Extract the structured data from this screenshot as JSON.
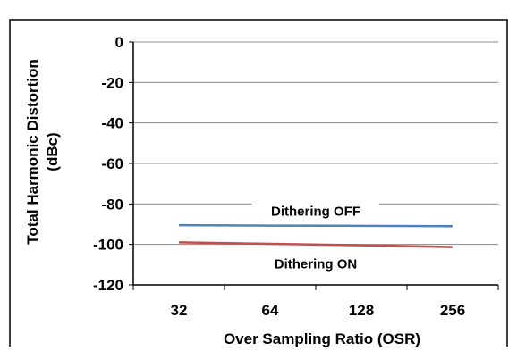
{
  "chart_data": {
    "type": "line",
    "categories": [
      "32",
      "64",
      "128",
      "256"
    ],
    "series": [
      {
        "name": "Dithering OFF",
        "values": [
          -90.5,
          -90.7,
          -90.8,
          -91
        ],
        "color": "#4f81bd"
      },
      {
        "name": "Dithering ON",
        "values": [
          -99,
          -99.7,
          -100.4,
          -101.3
        ],
        "color": "#c0504d"
      }
    ],
    "ylabel_line1": "Total Harmonic Distortion",
    "ylabel_line2": "(dBc)",
    "xlabel": "Over Sampling Ratio (OSR)",
    "ylim": [
      -120,
      0
    ],
    "yticks": [
      0,
      -20,
      -40,
      -60,
      -80,
      -100,
      -120
    ],
    "grid": true,
    "legend": "inline labels"
  }
}
